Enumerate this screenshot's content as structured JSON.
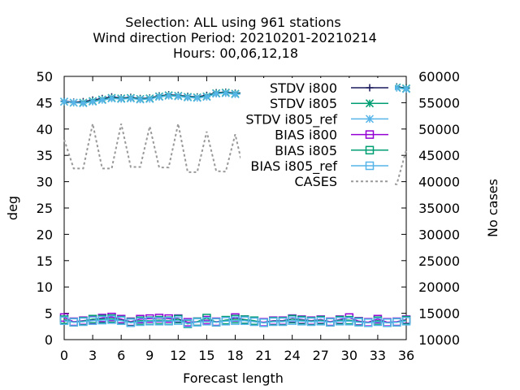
{
  "chart_data": {
    "type": "line",
    "title_lines": [
      "Selection: ALL using   961 stations",
      "Wind direction   Period: 20210201-20210214",
      "Hours:  00,06,12,18"
    ],
    "xlabel": "Forecast length",
    "ylabel": "deg",
    "y2label": "No cases",
    "xlim": [
      0,
      36
    ],
    "ylim": [
      0,
      50
    ],
    "y2lim": [
      10000,
      60000
    ],
    "xticks": [
      0,
      3,
      6,
      9,
      12,
      15,
      18,
      21,
      24,
      27,
      30,
      33,
      36
    ],
    "yticks": [
      0,
      5,
      10,
      15,
      20,
      25,
      30,
      35,
      40,
      45,
      50
    ],
    "y2ticks": [
      10000,
      15000,
      20000,
      25000,
      30000,
      35000,
      40000,
      45000,
      50000,
      55000,
      60000
    ],
    "grid": false,
    "legend_position": "top-right",
    "x": [
      0,
      1,
      2,
      3,
      4,
      5,
      6,
      7,
      8,
      9,
      10,
      11,
      12,
      13,
      14,
      15,
      16,
      17,
      18,
      19,
      20,
      21,
      22,
      23,
      24,
      25,
      26,
      27,
      28,
      29,
      30,
      31,
      32,
      33,
      34,
      35,
      36
    ],
    "series": [
      {
        "name": "STDV i800",
        "axis": "y",
        "color": "#1a1a5e",
        "marker": "plus",
        "values": [
          45.3,
          45.1,
          45.2,
          45.5,
          45.8,
          46.1,
          45.9,
          46.0,
          45.8,
          45.9,
          46.3,
          46.5,
          46.4,
          46.2,
          46.1,
          46.4,
          46.9,
          47.0,
          46.8,
          46.9,
          46.6,
          46.9,
          47.2,
          47.3,
          47.4,
          47.3,
          47.5,
          47.4,
          47.6,
          47.5,
          47.6,
          47.7,
          47.7,
          47.8,
          47.9,
          48.0,
          47.8
        ]
      },
      {
        "name": "STDV i805",
        "axis": "y",
        "color": "#009e73",
        "marker": "star",
        "values": [
          45.2,
          45.0,
          45.0,
          45.3,
          45.6,
          45.9,
          45.8,
          45.9,
          45.7,
          45.8,
          46.2,
          46.4,
          46.3,
          46.1,
          46.0,
          46.2,
          46.8,
          46.9,
          46.7,
          46.8,
          46.5,
          46.8,
          47.1,
          47.2,
          47.3,
          47.2,
          47.3,
          47.3,
          47.5,
          47.4,
          47.5,
          47.6,
          47.6,
          47.7,
          47.8,
          47.9,
          47.7
        ]
      },
      {
        "name": "STDV i805_ref",
        "axis": "y",
        "color": "#56b4e9",
        "marker": "star",
        "values": [
          45.2,
          45.0,
          44.9,
          45.2,
          45.5,
          45.8,
          45.7,
          45.8,
          45.6,
          45.7,
          46.1,
          46.3,
          46.2,
          46.0,
          45.9,
          46.1,
          46.7,
          46.8,
          46.6,
          46.7,
          46.4,
          46.7,
          47.0,
          47.1,
          47.2,
          47.1,
          47.2,
          47.2,
          47.4,
          47.3,
          47.4,
          47.5,
          47.5,
          47.6,
          47.7,
          47.8,
          47.6
        ]
      },
      {
        "name": "BIAS i800",
        "axis": "y",
        "color": "#9400d3",
        "marker": "square",
        "values": [
          4.2,
          3.4,
          3.6,
          3.8,
          4.1,
          4.3,
          3.9,
          3.4,
          3.9,
          4.0,
          4.1,
          4.0,
          4.0,
          3.3,
          3.4,
          3.7,
          3.4,
          3.6,
          4.2,
          3.8,
          3.5,
          3.3,
          3.6,
          3.6,
          4.0,
          3.8,
          3.6,
          3.8,
          3.4,
          3.8,
          4.2,
          3.5,
          3.3,
          3.9,
          3.3,
          3.4,
          3.8
        ]
      },
      {
        "name": "BIAS i805",
        "axis": "y",
        "color": "#009e73",
        "marker": "square",
        "values": [
          3.8,
          3.3,
          3.5,
          3.9,
          3.9,
          4.0,
          3.7,
          3.3,
          3.6,
          3.6,
          3.7,
          3.6,
          3.9,
          3.0,
          3.4,
          4.1,
          3.3,
          3.7,
          3.9,
          3.8,
          3.6,
          3.2,
          3.5,
          3.5,
          3.9,
          3.7,
          3.5,
          3.7,
          3.3,
          3.7,
          3.7,
          3.4,
          3.2,
          3.6,
          3.2,
          3.3,
          3.7
        ]
      },
      {
        "name": "BIAS i805_ref",
        "axis": "y",
        "color": "#56b4e9",
        "marker": "square",
        "values": [
          3.6,
          3.3,
          3.4,
          3.6,
          3.7,
          3.8,
          3.6,
          3.2,
          3.4,
          3.5,
          3.5,
          3.5,
          3.6,
          3.1,
          3.3,
          3.5,
          3.3,
          3.5,
          3.6,
          3.6,
          3.4,
          3.2,
          3.4,
          3.4,
          3.6,
          3.5,
          3.4,
          3.5,
          3.3,
          3.5,
          3.5,
          3.3,
          3.2,
          3.4,
          3.2,
          3.3,
          3.5
        ]
      },
      {
        "name": "CASES",
        "axis": "y2",
        "color": "#999999",
        "marker": "none",
        "dash": true,
        "values": [
          48000,
          42500,
          42500,
          51000,
          42500,
          42500,
          51000,
          42800,
          42800,
          50500,
          42700,
          42700,
          51000,
          41800,
          41800,
          49500,
          42000,
          41900,
          49000,
          41200,
          41200,
          49000,
          40800,
          40800,
          47300,
          40500,
          40300,
          47000,
          40200,
          40200,
          47000,
          39800,
          39700,
          46500,
          39600,
          39500,
          46000
        ]
      }
    ]
  }
}
